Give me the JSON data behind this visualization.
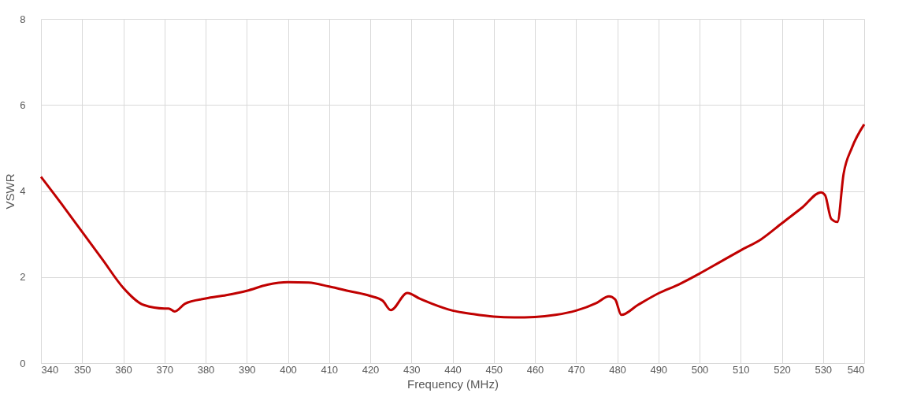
{
  "chart_data": {
    "type": "line",
    "xlabel": "Frequency (MHz)",
    "ylabel": "VSWR",
    "x": [
      340,
      345,
      350,
      355,
      360,
      365,
      370,
      371,
      372.5,
      375,
      380,
      385,
      390,
      395,
      400,
      405,
      410,
      415,
      420,
      423,
      425,
      429,
      432,
      435,
      440,
      445,
      450,
      455,
      460,
      465,
      470,
      475,
      478,
      479.5,
      481,
      485,
      490,
      495,
      500,
      505,
      510,
      515,
      520,
      525,
      529.5,
      530.5,
      532,
      533.5,
      535,
      537,
      540
    ],
    "series": [
      {
        "color": "#c00000",
        "values": [
          4.33,
          3.7,
          3.05,
          2.4,
          1.75,
          1.35,
          1.27,
          1.27,
          1.2,
          1.38,
          1.5,
          1.58,
          1.68,
          1.82,
          1.88,
          1.87,
          1.78,
          1.67,
          1.56,
          1.45,
          1.23,
          1.63,
          1.5,
          1.38,
          1.22,
          1.14,
          1.08,
          1.06,
          1.07,
          1.12,
          1.22,
          1.4,
          1.55,
          1.48,
          1.12,
          1.35,
          1.62,
          1.83,
          2.08,
          2.35,
          2.62,
          2.88,
          3.25,
          3.62,
          3.97,
          3.9,
          3.35,
          3.28,
          4.4,
          5.0,
          5.55
        ]
      }
    ],
    "xlim": [
      340,
      540
    ],
    "xticks": [
      340,
      350,
      360,
      370,
      380,
      390,
      400,
      410,
      420,
      430,
      440,
      450,
      460,
      470,
      480,
      490,
      500,
      510,
      520,
      530,
      540
    ],
    "ylim": [
      0,
      8
    ],
    "yticks": [
      0,
      2,
      4,
      6,
      8
    ],
    "grid": true,
    "marker": "none",
    "line_style": "solid"
  }
}
